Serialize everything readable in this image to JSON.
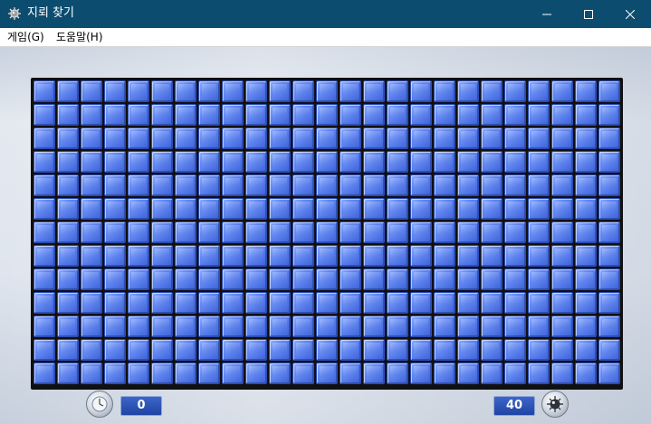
{
  "window": {
    "title": "지뢰 찾기",
    "minimize_icon": "minimize-icon",
    "maximize_icon": "maximize-icon",
    "close_icon": "close-icon"
  },
  "menu": {
    "items": [
      {
        "label": "게임(G)"
      },
      {
        "label": "도움말(H)"
      }
    ]
  },
  "board": {
    "columns": 25,
    "rows": 13,
    "tile_state": "unrevealed",
    "tile_color": "#4f75e6"
  },
  "status": {
    "elapsed_time": "0",
    "mines_remaining": "40",
    "timer_icon": "clock-icon",
    "mine_icon": "mine-icon"
  },
  "colors": {
    "titlebar": "#0c4d6f",
    "counter_bg": "#2a50b4"
  }
}
